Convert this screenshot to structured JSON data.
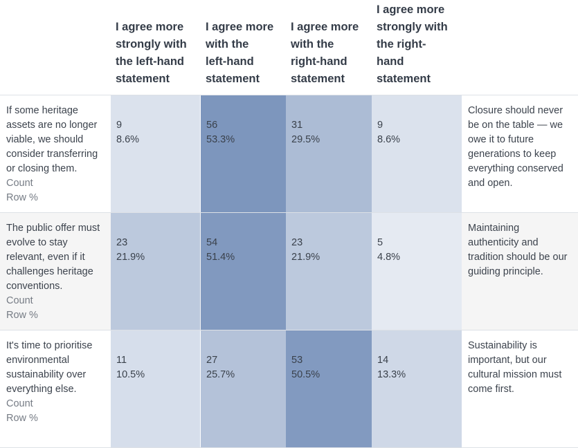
{
  "chart_data": {
    "type": "table",
    "columns": [
      "I agree more strongly with the left-hand statement",
      "I agree more with the left-hand statement",
      "I agree more with the right-hand statement",
      "I agree more strongly with the right-hand statement"
    ],
    "column_lines": [
      [
        "I agree more",
        "strongly with",
        "the left-hand",
        "statement"
      ],
      [
        "I agree more",
        "with the",
        "left-hand",
        "statement"
      ],
      [
        "I agree more",
        "with the",
        "right-hand",
        "statement"
      ],
      [
        "I agree more",
        "strongly with",
        "the right-",
        "hand",
        "statement"
      ]
    ],
    "rows": [
      {
        "left_lines": [
          "If some heritage",
          "assets are no longer",
          "viable, we should",
          "consider transferring",
          "or closing them."
        ],
        "right_lines": [
          "Closure should never",
          "be on the table — we",
          "owe it to future",
          "generations to keep",
          "everything conserved",
          "and open."
        ],
        "counts": [
          9,
          56,
          31,
          9
        ],
        "row_pct": [
          "8.6%",
          "53.3%",
          "29.5%",
          "8.6%"
        ]
      },
      {
        "left_lines": [
          "The public offer must",
          "evolve to stay",
          "relevant, even if it",
          "challenges heritage",
          "conventions."
        ],
        "right_lines": [
          "Maintaining",
          "authenticity and",
          "tradition should be our",
          "guiding principle."
        ],
        "counts": [
          23,
          54,
          23,
          5
        ],
        "row_pct": [
          "21.9%",
          "51.4%",
          "21.9%",
          "4.8%"
        ]
      },
      {
        "left_lines": [
          "It's time to prioritise",
          "environmental",
          "sustainability over",
          "everything else."
        ],
        "right_lines": [
          "Sustainability is",
          "important, but our",
          "cultural mission must",
          "come first."
        ],
        "counts": [
          11,
          27,
          53,
          14
        ],
        "row_pct": [
          "10.5%",
          "25.7%",
          "50.5%",
          "13.3%"
        ]
      }
    ],
    "row_sublabels": [
      "Count",
      "Row %"
    ],
    "heat_color_low": "#f4f6fa",
    "heat_color_high": "#7d96bd",
    "shaded_row_color": "#f5f5f5"
  }
}
